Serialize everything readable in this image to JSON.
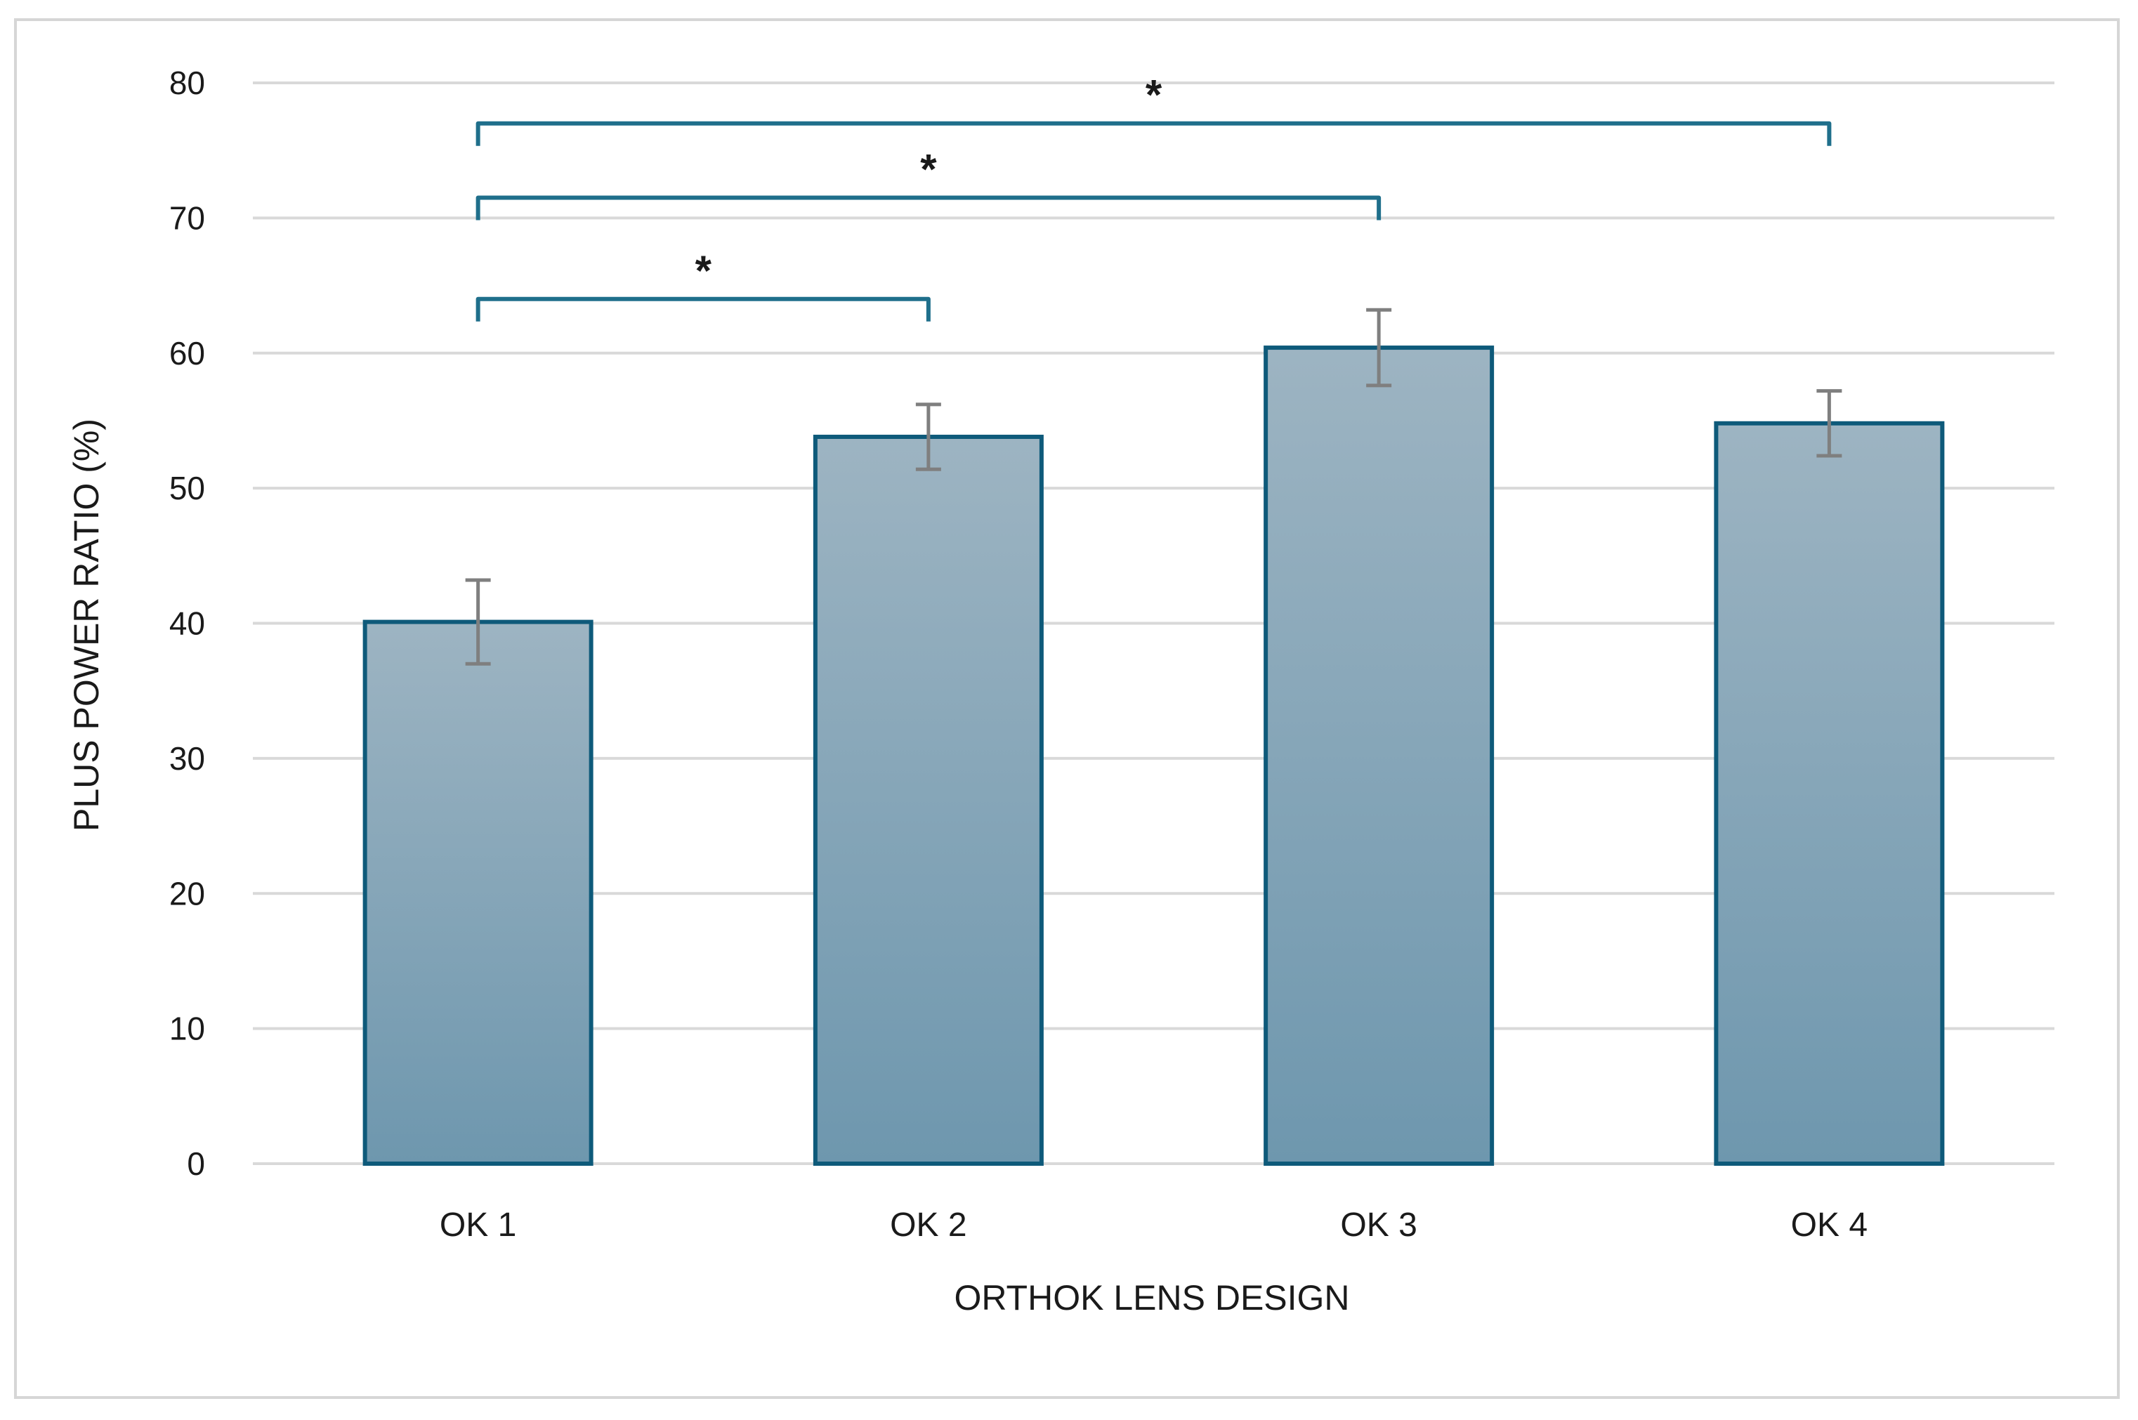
{
  "chart_data": {
    "type": "bar",
    "title": "",
    "xlabel": "ORTHOK LENS DESIGN",
    "ylabel": "PLUS POWER RATIO (%)",
    "ylim": [
      0,
      80
    ],
    "yticks": [
      "0",
      "10",
      "20",
      "30",
      "40",
      "50",
      "60",
      "70",
      "80"
    ],
    "grid": true,
    "categories": [
      "OK 1",
      "OK 2",
      "OK 3",
      "OK 4"
    ],
    "values": [
      40.1,
      53.8,
      60.4,
      54.8
    ],
    "error": [
      3.1,
      2.4,
      2.8,
      2.4
    ],
    "significance": [
      {
        "from": "OK 1",
        "to": "OK 2",
        "label": "*",
        "level": 64
      },
      {
        "from": "OK 1",
        "to": "OK 3",
        "label": "*",
        "level": 71.5
      },
      {
        "from": "OK 1",
        "to": "OK 4",
        "label": "*",
        "level": 77
      }
    ],
    "colors": {
      "bar_fill_top": "#9db4c2",
      "bar_fill_bottom": "#6e97ae",
      "bar_stroke": "#0e5a7a",
      "error_bar": "#7f7f7f",
      "bracket": "#1f6f8b",
      "grid": "#d9d9d9"
    }
  }
}
